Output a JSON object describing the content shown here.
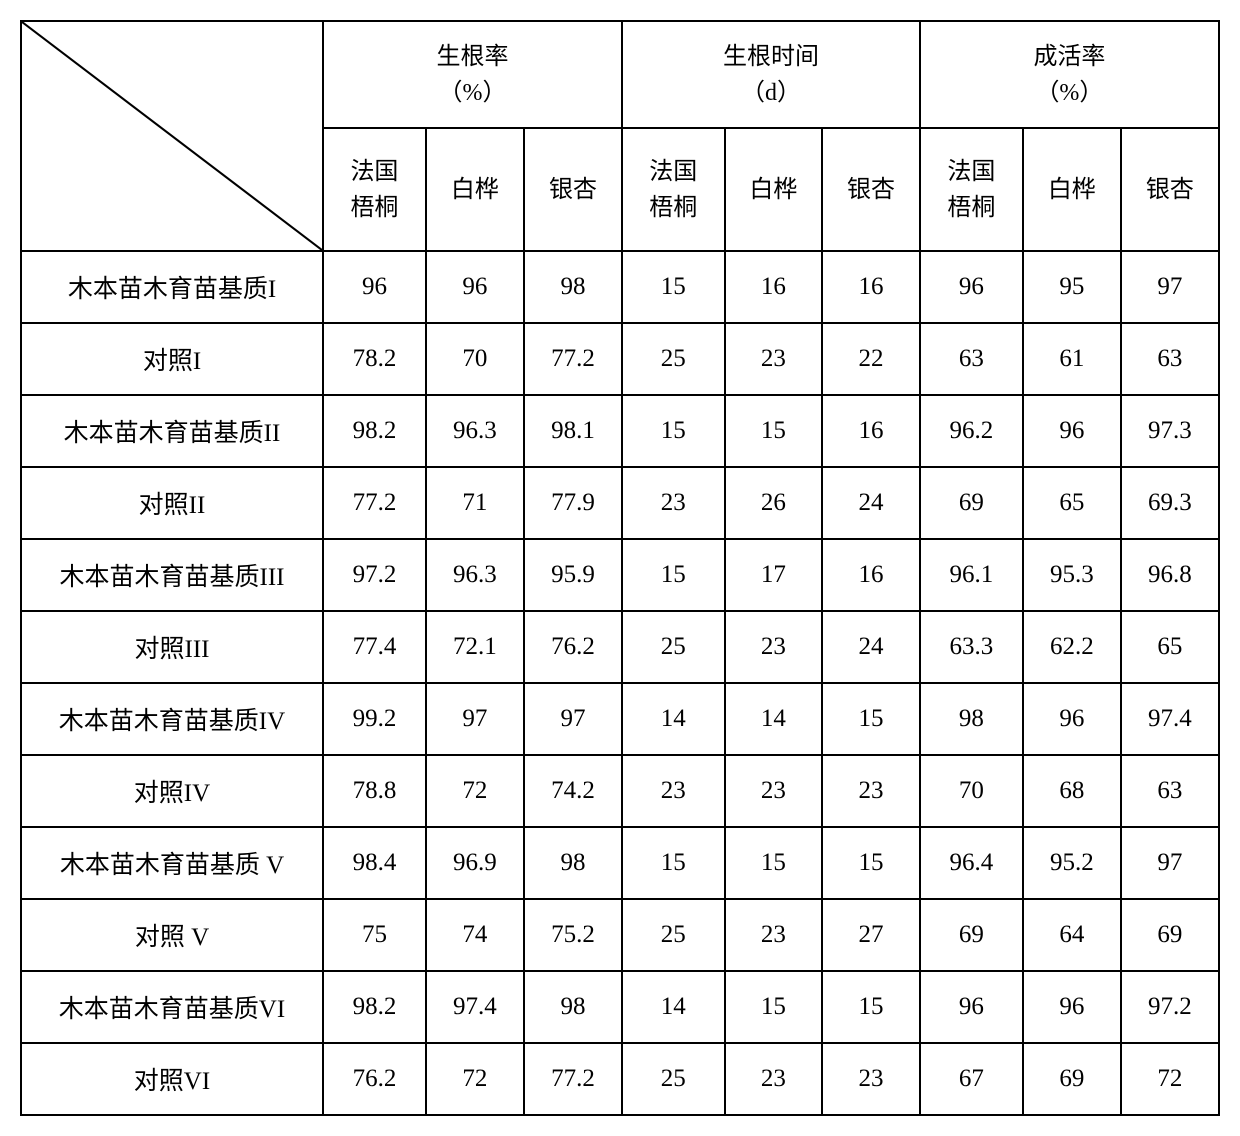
{
  "table": {
    "type": "table",
    "background_color": "#ffffff",
    "border_color": "#000000",
    "border_width": 2,
    "font_family": "SimSun",
    "header_fontsize": 24,
    "cell_fontsize": 25,
    "text_color": "#000000",
    "col_widths": {
      "row_label": 310,
      "sub_wide": 95,
      "sub_narrow": 90
    },
    "row_heights": {
      "group_header": 105,
      "sub_header": 105,
      "data": 70
    },
    "group_headers": [
      {
        "line1": "生根率",
        "line2": "（%）"
      },
      {
        "line1": "生根时间",
        "line2": "（d）"
      },
      {
        "line1": "成活率",
        "line2": "（%）"
      }
    ],
    "sub_headers": [
      "法国梧桐",
      "白桦",
      "银杏"
    ],
    "sub_headers_multiline": [
      {
        "line1": "法国",
        "line2": "梧桐"
      },
      {
        "single": "白桦"
      },
      {
        "single": "银杏"
      }
    ],
    "rows": [
      {
        "label": "木本苗木育苗基质I",
        "values": [
          "96",
          "96",
          "98",
          "15",
          "16",
          "16",
          "96",
          "95",
          "97"
        ]
      },
      {
        "label": "对照I",
        "values": [
          "78.2",
          "70",
          "77.2",
          "25",
          "23",
          "22",
          "63",
          "61",
          "63"
        ]
      },
      {
        "label": "木本苗木育苗基质II",
        "values": [
          "98.2",
          "96.3",
          "98.1",
          "15",
          "15",
          "16",
          "96.2",
          "96",
          "97.3"
        ]
      },
      {
        "label": "对照II",
        "values": [
          "77.2",
          "71",
          "77.9",
          "23",
          "26",
          "24",
          "69",
          "65",
          "69.3"
        ]
      },
      {
        "label": "木本苗木育苗基质III",
        "values": [
          "97.2",
          "96.3",
          "95.9",
          "15",
          "17",
          "16",
          "96.1",
          "95.3",
          "96.8"
        ]
      },
      {
        "label": "对照III",
        "values": [
          "77.4",
          "72.1",
          "76.2",
          "25",
          "23",
          "24",
          "63.3",
          "62.2",
          "65"
        ]
      },
      {
        "label": "木本苗木育苗基质IV",
        "values": [
          "99.2",
          "97",
          "97",
          "14",
          "14",
          "15",
          "98",
          "96",
          "97.4"
        ]
      },
      {
        "label": "对照IV",
        "values": [
          "78.8",
          "72",
          "74.2",
          "23",
          "23",
          "23",
          "70",
          "68",
          "63"
        ]
      },
      {
        "label": "木本苗木育苗基质 V",
        "values": [
          "98.4",
          "96.9",
          "98",
          "15",
          "15",
          "15",
          "96.4",
          "95.2",
          "97"
        ]
      },
      {
        "label": "对照 V",
        "values": [
          "75",
          "74",
          "75.2",
          "25",
          "23",
          "27",
          "69",
          "64",
          "69"
        ]
      },
      {
        "label": "木本苗木育苗基质VI",
        "values": [
          "98.2",
          "97.4",
          "98",
          "14",
          "15",
          "15",
          "96",
          "96",
          "97.2"
        ]
      },
      {
        "label": "对照VI",
        "values": [
          "76.2",
          "72",
          "77.2",
          "25",
          "23",
          "23",
          "67",
          "69",
          "72"
        ]
      }
    ]
  }
}
